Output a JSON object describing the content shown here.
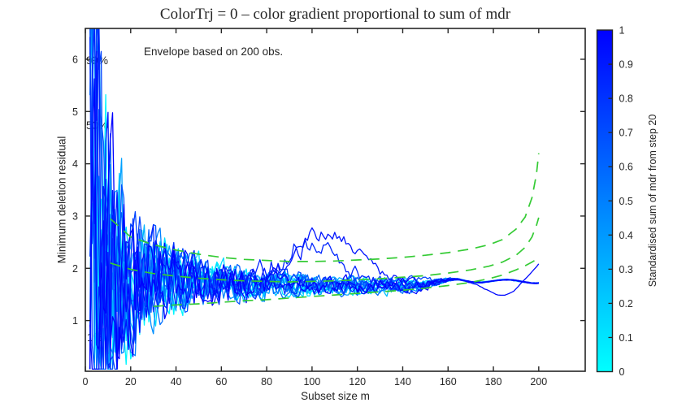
{
  "figure": {
    "title": "ColorTrj = 0 – color gradient proportional to sum of mdr",
    "annotation": "Envelope based on 200 obs.",
    "xlabel": "Subset size m",
    "ylabel": "Minimum deletion residual",
    "envelope_labels": [
      {
        "text": "99%",
        "y_value": 5.9
      },
      {
        "text": "50%",
        "y_value": 4.7
      },
      {
        "text": "1%",
        "y_value": 0.62
      }
    ]
  },
  "colorbar": {
    "label": "Standardised sum of mdr from step 20",
    "tick_values": [
      0,
      0.1,
      0.2,
      0.3,
      0.4,
      0.5,
      0.6,
      0.7,
      0.8,
      0.9,
      1
    ],
    "min_color": "#00ffff",
    "max_color": "#0000ff"
  },
  "chart_data": {
    "type": "line",
    "title": "ColorTrj = 0 – color gradient proportional to sum of mdr",
    "xlabel": "Subset size m",
    "ylabel": "Minimum deletion residual",
    "xlim": [
      0,
      220.5
    ],
    "ylim": [
      0.03,
      6.59
    ],
    "xticks": [
      0,
      20,
      40,
      60,
      80,
      100,
      120,
      140,
      160,
      180,
      200
    ],
    "yticks": [
      1,
      2,
      3,
      4,
      5,
      6
    ],
    "grid": false,
    "legend": false,
    "axis_color": "#262626",
    "envelope_color": "#35cb35",
    "envelopes": [
      {
        "name": "99%",
        "points": [
          [
            11,
            2.95
          ],
          [
            20,
            2.6
          ],
          [
            30,
            2.45
          ],
          [
            40,
            2.35
          ],
          [
            50,
            2.27
          ],
          [
            60,
            2.21
          ],
          [
            70,
            2.17
          ],
          [
            80,
            2.15
          ],
          [
            90,
            2.13
          ],
          [
            100,
            2.13
          ],
          [
            110,
            2.14
          ],
          [
            120,
            2.16
          ],
          [
            130,
            2.18
          ],
          [
            140,
            2.21
          ],
          [
            150,
            2.25
          ],
          [
            160,
            2.3
          ],
          [
            170,
            2.37
          ],
          [
            178,
            2.45
          ],
          [
            184,
            2.55
          ],
          [
            190,
            2.75
          ],
          [
            194,
            2.98
          ],
          [
            197,
            3.35
          ],
          [
            199,
            3.8
          ],
          [
            200,
            4.2
          ]
        ]
      },
      {
        "name": "50%",
        "points": [
          [
            11,
            2.1
          ],
          [
            20,
            1.98
          ],
          [
            30,
            1.9
          ],
          [
            40,
            1.85
          ],
          [
            50,
            1.81
          ],
          [
            60,
            1.78
          ],
          [
            70,
            1.76
          ],
          [
            80,
            1.75
          ],
          [
            90,
            1.74
          ],
          [
            100,
            1.75
          ],
          [
            110,
            1.76
          ],
          [
            120,
            1.78
          ],
          [
            130,
            1.8
          ],
          [
            140,
            1.83
          ],
          [
            150,
            1.86
          ],
          [
            160,
            1.91
          ],
          [
            170,
            1.97
          ],
          [
            178,
            2.04
          ],
          [
            184,
            2.12
          ],
          [
            190,
            2.25
          ],
          [
            194,
            2.4
          ],
          [
            197,
            2.6
          ],
          [
            199,
            2.82
          ],
          [
            200,
            2.97
          ]
        ]
      },
      {
        "name": "1%",
        "points": [
          [
            30,
            1.27
          ],
          [
            40,
            1.3
          ],
          [
            50,
            1.32
          ],
          [
            60,
            1.35
          ],
          [
            70,
            1.38
          ],
          [
            80,
            1.4
          ],
          [
            90,
            1.43
          ],
          [
            100,
            1.46
          ],
          [
            110,
            1.49
          ],
          [
            120,
            1.52
          ],
          [
            130,
            1.55
          ],
          [
            140,
            1.58
          ],
          [
            150,
            1.62
          ],
          [
            160,
            1.67
          ],
          [
            170,
            1.73
          ],
          [
            178,
            1.8
          ],
          [
            184,
            1.87
          ],
          [
            190,
            1.97
          ],
          [
            194,
            2.05
          ],
          [
            197,
            2.12
          ],
          [
            199,
            2.17
          ],
          [
            200,
            2.2
          ]
        ]
      }
    ],
    "trajectories": [
      {
        "color_value": 0.03,
        "seed": 101,
        "level": 0.02,
        "slope": 0.0
      },
      {
        "color_value": 0.08,
        "seed": 202,
        "level": -0.05,
        "slope": 0.05
      },
      {
        "color_value": 0.13,
        "seed": 303,
        "level": 0.05,
        "slope": -0.02
      },
      {
        "color_value": 0.18,
        "seed": 404,
        "level": 0.0,
        "slope": 0.04
      },
      {
        "color_value": 0.24,
        "seed": 505,
        "level": -0.06,
        "slope": 0.01
      },
      {
        "color_value": 0.3,
        "seed": 606,
        "level": 0.04,
        "slope": 0.02
      },
      {
        "color_value": 0.37,
        "seed": 707,
        "level": -0.02,
        "slope": 0.05
      },
      {
        "color_value": 0.44,
        "seed": 808,
        "level": 0.05,
        "slope": 0.0
      },
      {
        "color_value": 0.5,
        "seed": 909,
        "level": 0.0,
        "slope": 0.03
      },
      {
        "color_value": 0.56,
        "seed": 1010,
        "level": -0.05,
        "slope": 0.06
      },
      {
        "color_value": 0.62,
        "seed": 1111,
        "level": 0.03,
        "slope": 0.0
      },
      {
        "color_value": 0.68,
        "seed": 1212,
        "level": 0.0,
        "slope": 0.05
      },
      {
        "color_value": 0.74,
        "seed": 1313,
        "level": 0.06,
        "slope": 0.02
      },
      {
        "color_value": 0.8,
        "seed": 1414,
        "level": -0.03,
        "slope": 0.04
      },
      {
        "color_value": 0.86,
        "seed": 1515,
        "level": 0.02,
        "slope": 0.0,
        "bump_center": 99,
        "bump_height": 0.8
      },
      {
        "color_value": 0.92,
        "seed": 1616,
        "level": 0.0,
        "slope": 0.03,
        "bump_center": 108,
        "bump_height": 1.05
      },
      {
        "color_value": 0.97,
        "seed": 1717,
        "level": -0.02,
        "slope": 0.0,
        "dip_center": 184,
        "dip_depth": 0.3,
        "end_rise": 0.38
      },
      {
        "color_value": 1.0,
        "seed": 1818,
        "level": 0.04,
        "slope": 0.02
      }
    ]
  }
}
